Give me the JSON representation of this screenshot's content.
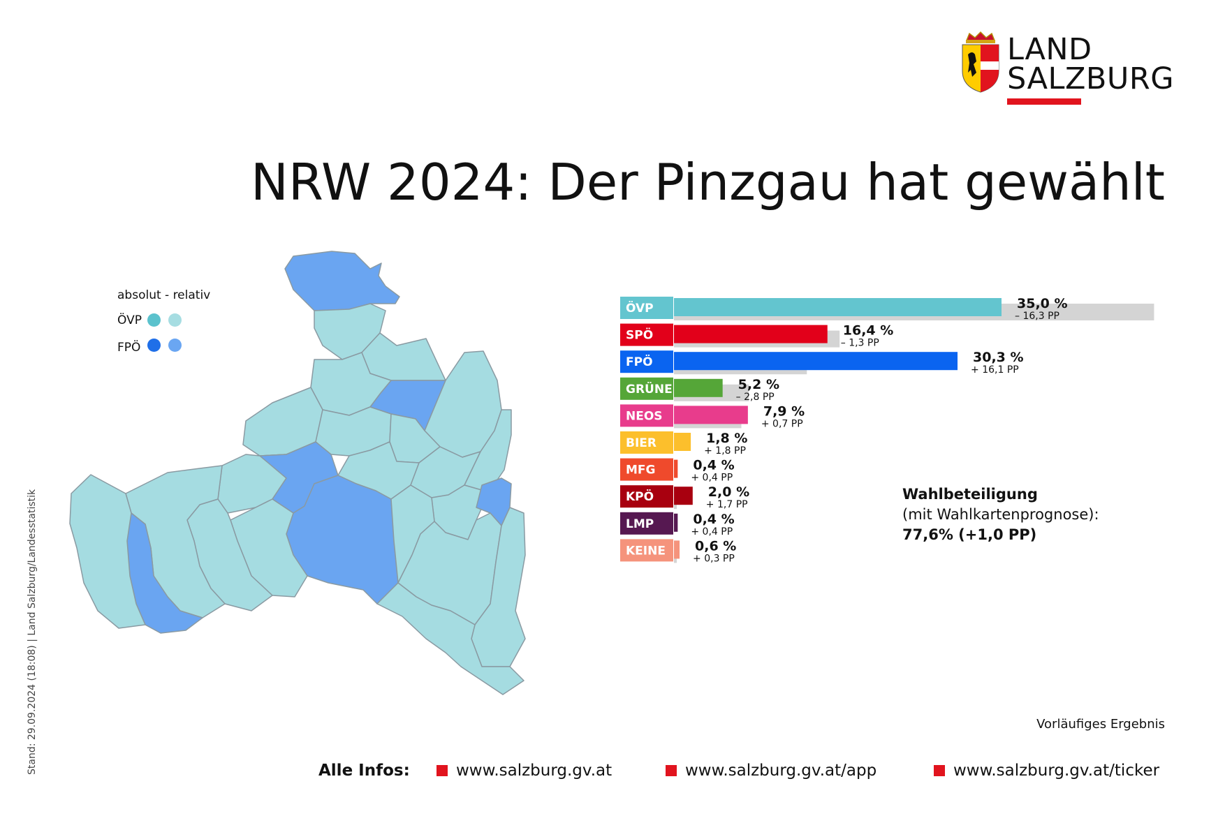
{
  "header": {
    "logo_line1": "LAND",
    "logo_line2": "SALZBURG",
    "title": "NRW 2024: Der Pinzgau hat gewählt"
  },
  "side_note": "Stand: 29.09.2024 (18:08) | Land Salzburg/Landesstatistik",
  "legend": {
    "heading": "absolut - relativ",
    "rows": [
      {
        "party": "ÖVP",
        "absolut_color": "#5bc2cd",
        "relativ_color": "#a6dde2"
      },
      {
        "party": "FPÖ",
        "absolut_color": "#1f6fe8",
        "relativ_color": "#6aa6f2"
      }
    ]
  },
  "map": {
    "region_colors": {
      "oevp": "#a5dce1",
      "fpoe": "#6aa5f1",
      "border": "#8a9aa2"
    }
  },
  "chart_data": {
    "type": "bar",
    "categories": [
      "ÖVP",
      "SPÖ",
      "FPÖ",
      "GRÜNE",
      "NEOS",
      "BIER",
      "MFG",
      "KPÖ",
      "LMP",
      "KEINE"
    ],
    "series": [
      {
        "values": [
          35.0,
          16.4,
          30.3,
          5.2,
          7.9,
          1.8,
          0.4,
          2.0,
          0.4,
          0.6
        ]
      },
      {
        "values": [
          51.3,
          17.7,
          14.2,
          8.0,
          7.2,
          0.0,
          0.0,
          0.3,
          0.0,
          0.3
        ]
      }
    ],
    "value_labels": [
      "35,0 %",
      "16,4 %",
      "30,3 %",
      "5,2 %",
      "7,9 %",
      "1,8 %",
      "0,4 %",
      "2,0 %",
      "0,4 %",
      "0,6 %"
    ],
    "change_labels": [
      "– 16,3 PP",
      "– 1,3 PP",
      "+ 16,1 PP",
      "– 2,8 PP",
      "+ 0,7 PP",
      "+ 1,8 PP",
      "+ 0,4 PP",
      "+ 1,7 PP",
      "+ 0,4 PP",
      "+ 0,3 PP"
    ],
    "colors": [
      "#63c5cf",
      "#e2001a",
      "#0a64f0",
      "#55a638",
      "#e83c8c",
      "#fcbf2c",
      "#ef4a2c",
      "#a8000f",
      "#561851",
      "#f5937c"
    ],
    "previous_color": "#d4d4d4",
    "xlim": [
      0,
      52
    ],
    "grid": false
  },
  "turnout": {
    "label": "Wahlbeteiligung",
    "sub": "(mit Wahlkartenprognose):",
    "value": "77,6% (+1,0 PP)"
  },
  "status": "Vorläufiges Ergebnis",
  "footer": {
    "label": "Alle Infos:",
    "links": [
      "www.salzburg.gv.at",
      "www.salzburg.gv.at/app",
      "www.salzburg.gv.at/ticker"
    ]
  }
}
